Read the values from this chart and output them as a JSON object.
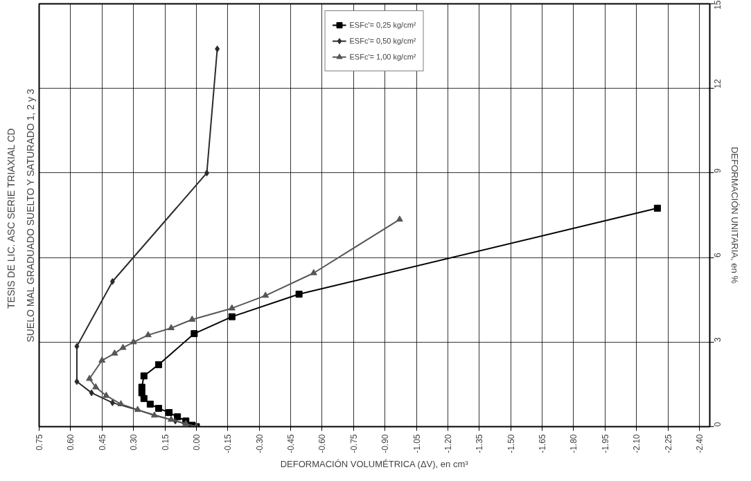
{
  "chart_data": {
    "type": "line",
    "title": "TESIS DE LIC. ASC SERIE  TRIAXIAL  CD",
    "subtitle": "SUELO MAL GRADUADO SUELTO Y SATURADO 1, 2 y 3",
    "xlabel": "DEFORMACIÓN VOLUMÉTRICA (ΔV), en cm³",
    "ylabel": "DEFORMACIÓN UNITARIA, en %",
    "xlim": [
      0.75,
      -2.45
    ],
    "ylim": [
      0,
      15
    ],
    "xticks": [
      {
        "value": 0.75,
        "label": "0.75"
      },
      {
        "value": 0.6,
        "label": "0.60"
      },
      {
        "value": 0.45,
        "label": "0.45"
      },
      {
        "value": 0.3,
        "label": "0.30"
      },
      {
        "value": 0.15,
        "label": "0.15"
      },
      {
        "value": 0,
        "label": "0.00"
      },
      {
        "value": -0.15,
        "label": "-0.15"
      },
      {
        "value": -0.3,
        "label": "-0.30"
      },
      {
        "value": -0.45,
        "label": "-0.45"
      },
      {
        "value": -0.6,
        "label": "-0.60"
      },
      {
        "value": -0.75,
        "label": "-0.75"
      },
      {
        "value": -0.9,
        "label": "-0.90"
      },
      {
        "value": -1.05,
        "label": "-1.05"
      },
      {
        "value": -1.2,
        "label": "-1.20"
      },
      {
        "value": -1.35,
        "label": "-1.35"
      },
      {
        "value": -1.5,
        "label": "-1.50"
      },
      {
        "value": -1.65,
        "label": "-1.65"
      },
      {
        "value": -1.8,
        "label": "-1.80"
      },
      {
        "value": -1.95,
        "label": "-1.95"
      },
      {
        "value": -2.1,
        "label": "-2.10"
      },
      {
        "value": -2.25,
        "label": "-2.25"
      },
      {
        "value": -2.4,
        "label": "-2.40"
      }
    ],
    "yticks": [
      0,
      3,
      6,
      9,
      12,
      15
    ],
    "grid": true,
    "legend": "top",
    "series": [
      {
        "name": "ESFc'= 0,25 kg/cm²",
        "color": "#000000",
        "marker": "square",
        "x": [
          0,
          0.02,
          0.05,
          0.09,
          0.13,
          0.18,
          0.22,
          0.25,
          0.26,
          0.26,
          0.25,
          0.18,
          0.01,
          -0.17,
          -0.49,
          -2.2
        ],
        "values": [
          0,
          0.05,
          0.2,
          0.35,
          0.5,
          0.65,
          0.8,
          1.0,
          1.2,
          1.4,
          1.8,
          2.2,
          3.3,
          3.9,
          4.7,
          7.75
        ]
      },
      {
        "name": "ESFc'= 0,50 kg/cm²",
        "color": "#2b2b2b",
        "marker": "diamond",
        "x": [
          0,
          0.1,
          0.4,
          0.5,
          0.57,
          0.57,
          0.4,
          -0.05,
          -0.1
        ],
        "values": [
          0,
          0.2,
          0.85,
          1.2,
          1.6,
          2.85,
          5.15,
          9.0,
          13.4
        ]
      },
      {
        "name": "ESFc'= 1,00 kg/cm²",
        "color": "#565656",
        "marker": "triangle",
        "x": [
          0,
          0.05,
          0.12,
          0.2,
          0.28,
          0.36,
          0.43,
          0.48,
          0.51,
          0.45,
          0.39,
          0.35,
          0.3,
          0.23,
          0.12,
          0.02,
          -0.17,
          -0.33,
          -0.56,
          -0.97
        ],
        "values": [
          0,
          0.1,
          0.25,
          0.4,
          0.6,
          0.8,
          1.1,
          1.4,
          1.7,
          2.35,
          2.6,
          2.8,
          3.0,
          3.25,
          3.5,
          3.8,
          4.2,
          4.65,
          5.45,
          7.35
        ]
      }
    ]
  }
}
